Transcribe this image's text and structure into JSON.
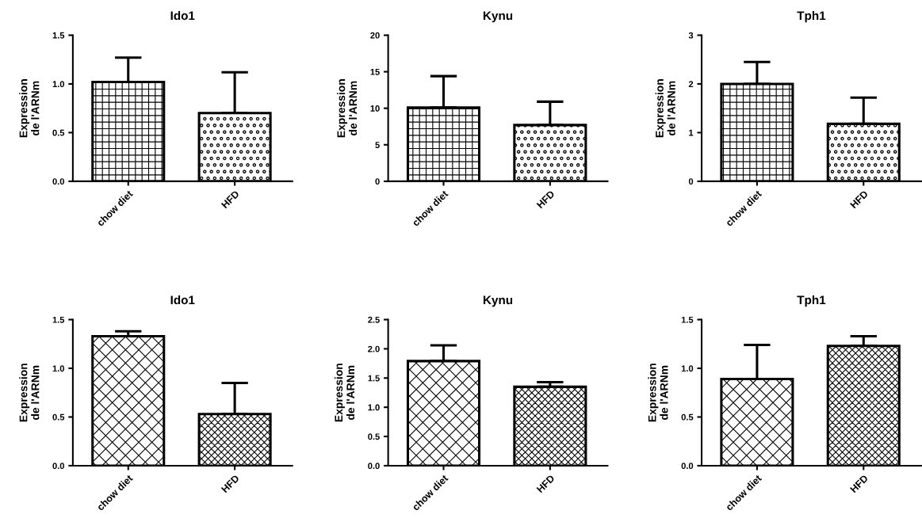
{
  "chart_data": [
    {
      "type": "bar",
      "title": "Ido1",
      "ylabel": "Expression\nde l'ARNm",
      "categories": [
        "chow diet",
        "HFD"
      ],
      "values": [
        1.02,
        0.7
      ],
      "errors": [
        [
          1.02,
          1.27
        ],
        [
          0.7,
          1.12
        ]
      ],
      "colors": [
        "#000000",
        "#000000"
      ],
      "ylim": [
        0,
        1.5
      ],
      "yticks": [
        {
          "value": 0,
          "label": "0.0"
        },
        {
          "value": 0.5,
          "label": "0.5"
        },
        {
          "value": 1,
          "label": "1.0"
        },
        {
          "value": 1.5,
          "label": "1.5"
        }
      ],
      "grid": false
    },
    {
      "type": "bar",
      "title": "Kynu",
      "ylabel": "Expression\nde l'ARNm",
      "categories": [
        "chow diet",
        "HFD"
      ],
      "values": [
        10.1,
        7.7
      ],
      "errors": [
        [
          10.1,
          14.4
        ],
        [
          7.7,
          10.9
        ]
      ],
      "colors": [
        "#000000",
        "#000000"
      ],
      "ylim": [
        0,
        20
      ],
      "yticks": [
        0,
        5,
        10,
        15,
        20
      ],
      "grid": false
    },
    {
      "type": "bar",
      "title": "Tph1",
      "ylabel": "Expression\nde l'ARNm",
      "categories": [
        "chow diet",
        "HFD"
      ],
      "values": [
        2.0,
        1.18
      ],
      "errors": [
        [
          2.0,
          2.45
        ],
        [
          1.18,
          1.72
        ]
      ],
      "colors": [
        "#000000",
        "#000000"
      ],
      "ylim": [
        0,
        3
      ],
      "yticks": [
        0,
        1,
        2,
        3
      ],
      "grid": false
    },
    {
      "type": "bar",
      "title": "Ido1",
      "ylabel": "Expression\nde l'ARNm",
      "categories": [
        "chow diet",
        "HFD"
      ],
      "values": [
        1.33,
        0.53
      ],
      "errors": [
        [
          1.33,
          1.38
        ],
        [
          0.53,
          0.85
        ]
      ],
      "colors": [
        "#000000",
        "#000000"
      ],
      "ylim": [
        0,
        1.5
      ],
      "yticks": [
        {
          "value": 0,
          "label": "0.0"
        },
        {
          "value": 0.5,
          "label": "0.5"
        },
        {
          "value": 1,
          "label": "1.0"
        },
        {
          "value": 1.5,
          "label": "1.5"
        }
      ],
      "grid": false
    },
    {
      "type": "bar",
      "title": "Kynu",
      "ylabel": "Expression\nde l'ARNm",
      "categories": [
        "chow diet",
        "HFD"
      ],
      "values": [
        1.79,
        1.35
      ],
      "errors": [
        [
          1.79,
          2.06
        ],
        [
          1.35,
          1.43
        ]
      ],
      "colors": [
        "#000000",
        "#000000"
      ],
      "ylim": [
        0,
        2.5
      ],
      "yticks": [
        {
          "value": 0,
          "label": "0.0"
        },
        {
          "value": 0.5,
          "label": "0.5"
        },
        {
          "value": 1,
          "label": "1.0"
        },
        {
          "value": 1.5,
          "label": "1.5"
        },
        {
          "value": 2,
          "label": "2.0"
        },
        {
          "value": 2.5,
          "label": "2.5"
        }
      ],
      "grid": false
    },
    {
      "type": "bar",
      "title": "Tph1",
      "ylabel": "Expression\nde l'ARNm",
      "categories": [
        "chow diet",
        "HFD"
      ],
      "values": [
        0.89,
        1.23
      ],
      "errors": [
        [
          0.89,
          1.24
        ],
        [
          1.23,
          1.33
        ]
      ],
      "colors": [
        "#000000",
        "#000000"
      ],
      "ylim": [
        0,
        1.5
      ],
      "yticks": [
        {
          "value": 0,
          "label": "0.0"
        },
        {
          "value": 0.5,
          "label": "0.5"
        },
        {
          "value": 1,
          "label": "1.0"
        },
        {
          "value": 1.5,
          "label": "1.5"
        }
      ],
      "grid": false
    }
  ]
}
